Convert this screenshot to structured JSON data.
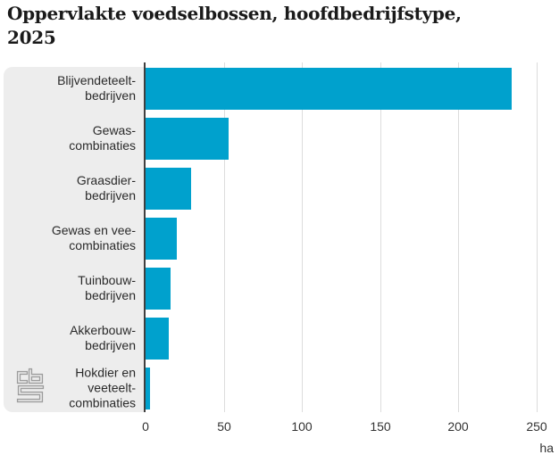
{
  "header": {
    "title_line1": "Oppervlakte voedselbossen, hoofdbedrijfstype,",
    "title_line2": "2025"
  },
  "logo": {
    "name": "cbs-logo",
    "color": "#9c9c9c"
  },
  "chart_data": {
    "type": "bar",
    "orientation": "horizontal",
    "title": "Oppervlakte voedselbossen, hoofdbedrijfstype, 2025",
    "categories": [
      "Blijvendeteelt-bedrijven",
      "Gewas-combinaties",
      "Graasdier-bedrijven",
      "Gewas en vee-combinaties",
      "Tuinbouw-bedrijven",
      "Akkerbouw-bedrijven",
      "Hokdier en veeteelt-combinaties"
    ],
    "category_lines": [
      [
        "Blijvendeteelt-",
        "bedrijven"
      ],
      [
        "Gewas-",
        "combinaties"
      ],
      [
        "Graasdier-",
        "bedrijven"
      ],
      [
        "Gewas en vee-",
        "combinaties"
      ],
      [
        "Tuinbouw-",
        "bedrijven"
      ],
      [
        "Akkerbouw-",
        "bedrijven"
      ],
      [
        "Hokdier en",
        "veeteelt-",
        "combinaties"
      ]
    ],
    "values": [
      234,
      53,
      29,
      20,
      16,
      15,
      3
    ],
    "unit": "ha",
    "x_ticks": [
      0,
      50,
      100,
      150,
      200,
      250
    ],
    "xlim": [
      0,
      261
    ],
    "grid": "vertical-only",
    "legend": "none",
    "bar_color": "#00a1cd",
    "grid_color": "#dcdcdc",
    "axis_color": "#404040",
    "panel_color": "#ededed",
    "text_color": "#2a2a2a"
  }
}
